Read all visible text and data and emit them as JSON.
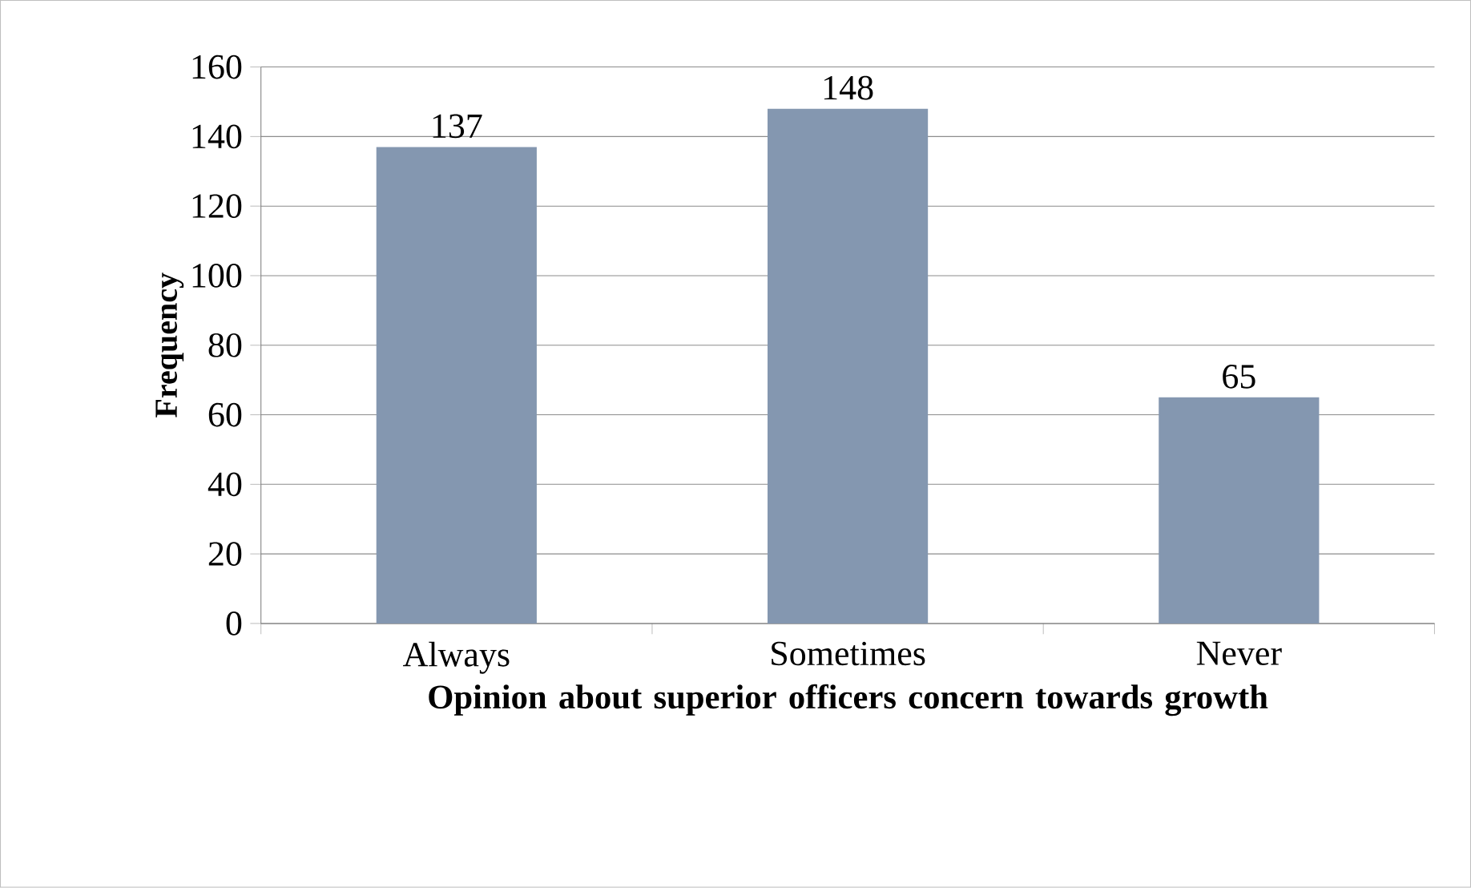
{
  "chart_data": {
    "type": "bar",
    "xlabel": "Opinion about superior officers concern towards growth",
    "ylabel": "Frequency",
    "categories": [
      "Always",
      "Sometimes",
      "Never"
    ],
    "values": [
      137,
      148,
      65
    ],
    "color": "#8497b0",
    "data_labels": true,
    "ylim": [
      0,
      160
    ],
    "yticks": [
      0,
      20,
      40,
      60,
      80,
      100,
      120,
      140,
      160
    ],
    "grid": "y"
  }
}
